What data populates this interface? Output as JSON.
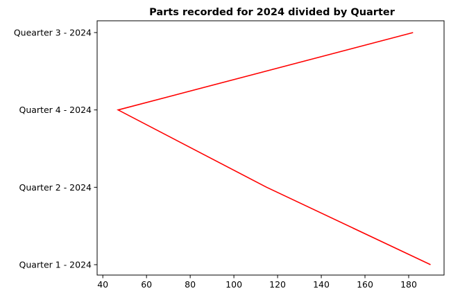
{
  "chart_data": {
    "type": "line",
    "title": "Parts recorded for 2024 divided by Quarter",
    "xlabel": "",
    "ylabel": "",
    "orientation": "horizontal",
    "categories": [
      "Quarter 1 - 2024",
      "Quarter 2 - 2024",
      "Quarter 4 - 2024",
      "Quearter 3 - 2024"
    ],
    "series": [
      {
        "values": [
          190,
          115,
          47,
          182
        ],
        "color": "#ff0000"
      }
    ],
    "xlim": [
      37.4,
      196.2
    ],
    "xticks": [
      40,
      60,
      80,
      100,
      120,
      140,
      160,
      180
    ],
    "grid": false
  }
}
